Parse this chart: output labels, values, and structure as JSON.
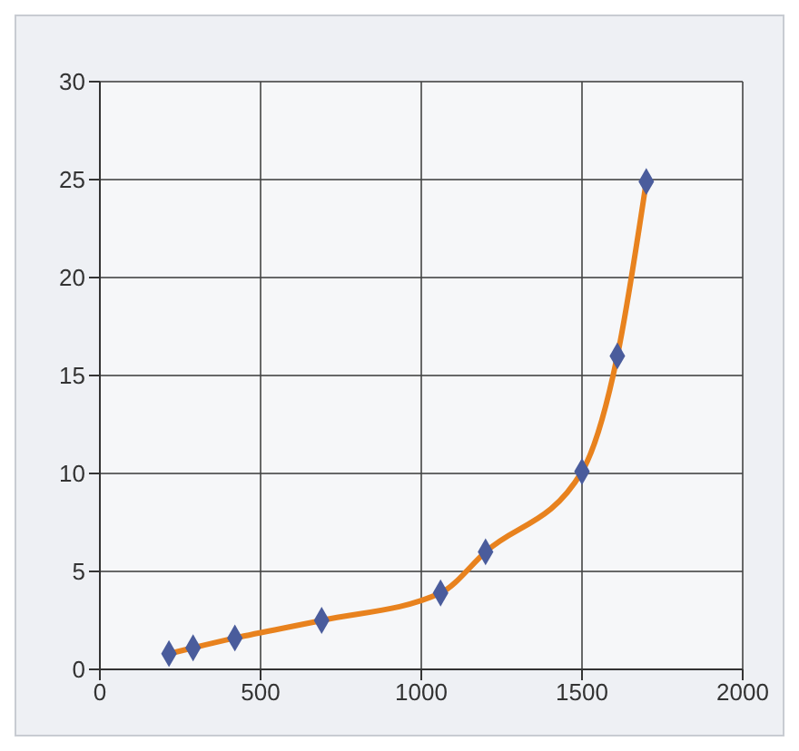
{
  "chart_data": {
    "type": "line",
    "x": [
      215,
      290,
      420,
      690,
      1060,
      1200,
      1500,
      1610,
      1700
    ],
    "series": [
      {
        "color": "#e8821e",
        "line_style": "solid",
        "marker": "none",
        "values": [
          0.8,
          1.1,
          1.6,
          2.5,
          3.9,
          6.0,
          10.1,
          16.0,
          24.9
        ]
      },
      {
        "type": "scatter",
        "color": "#4a5c9c",
        "marker": "diamond",
        "values": [
          0.8,
          1.1,
          1.6,
          2.5,
          3.9,
          6.0,
          10.1,
          16.0,
          24.9
        ]
      }
    ],
    "xlim": [
      0,
      2000
    ],
    "xticks": [
      0,
      500,
      1000,
      1500,
      2000
    ],
    "ylim": [
      0,
      30
    ],
    "yticks": [
      0,
      5,
      10,
      15,
      20,
      25,
      30
    ],
    "grid": true
  }
}
